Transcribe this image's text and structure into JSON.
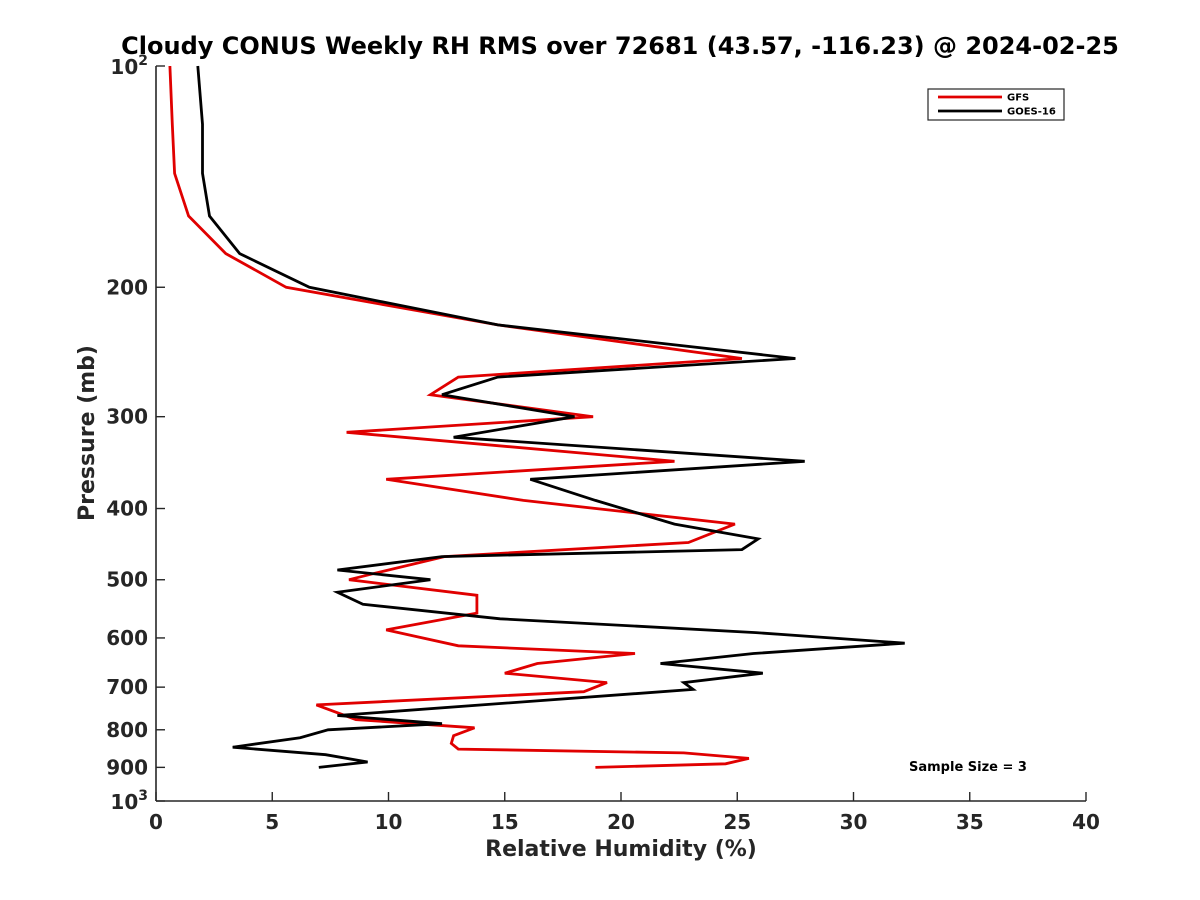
{
  "chart_data": {
    "type": "line",
    "title": "Cloudy CONUS Weekly RH RMS over 72681 (43.57, -116.23) @ 2024-02-25",
    "xlabel": "Relative Humidity (%)",
    "ylabel": "Pressure (mb)",
    "xlim": [
      0,
      40
    ],
    "ylim": [
      100,
      1000
    ],
    "y_scale": "log",
    "y_reversed": true,
    "xticks": [
      0,
      5,
      10,
      15,
      20,
      25,
      30,
      35,
      40
    ],
    "yticks": [
      100,
      200,
      300,
      400,
      500,
      600,
      700,
      800,
      900,
      1000
    ],
    "ytick_labels": [
      "",
      "200",
      "300",
      "400",
      "500",
      "600",
      "700",
      "800",
      "900",
      ""
    ],
    "ytick_exponent_labels": [
      {
        "p": 100,
        "base": "10",
        "exp": "2"
      },
      {
        "p": 1000,
        "base": "10",
        "exp": "3"
      }
    ],
    "grid": false,
    "legend_position": "top-right",
    "annotation": "Sample Size = 3",
    "series": [
      {
        "name": "GFS",
        "color": "#e00000",
        "points": [
          [
            0.6,
            100
          ],
          [
            0.7,
            120
          ],
          [
            0.8,
            140
          ],
          [
            1.4,
            160
          ],
          [
            3.0,
            180
          ],
          [
            5.6,
            200
          ],
          [
            14.7,
            225
          ],
          [
            25.2,
            250
          ],
          [
            13.0,
            265
          ],
          [
            11.8,
            280
          ],
          [
            18.8,
            300
          ],
          [
            8.2,
            315
          ],
          [
            22.3,
            345
          ],
          [
            9.9,
            365
          ],
          [
            15.8,
            390
          ],
          [
            24.9,
            420
          ],
          [
            22.9,
            445
          ],
          [
            12.4,
            465
          ],
          [
            9.4,
            490
          ],
          [
            8.3,
            500
          ],
          [
            13.8,
            525
          ],
          [
            13.8,
            555
          ],
          [
            9.9,
            585
          ],
          [
            13.0,
            615
          ],
          [
            20.6,
            630
          ],
          [
            16.4,
            650
          ],
          [
            15.0,
            670
          ],
          [
            19.4,
            690
          ],
          [
            18.4,
            710
          ],
          [
            6.9,
            740
          ],
          [
            8.6,
            775
          ],
          [
            13.7,
            795
          ],
          [
            12.8,
            815
          ],
          [
            12.7,
            835
          ],
          [
            13.0,
            850
          ],
          [
            22.7,
            860
          ],
          [
            25.5,
            875
          ],
          [
            24.5,
            890
          ],
          [
            18.9,
            900
          ]
        ]
      },
      {
        "name": "GOES-16",
        "color": "#000000",
        "points": [
          [
            1.8,
            100
          ],
          [
            2.0,
            120
          ],
          [
            2.0,
            140
          ],
          [
            2.3,
            160
          ],
          [
            3.6,
            180
          ],
          [
            6.6,
            200
          ],
          [
            14.7,
            225
          ],
          [
            27.5,
            250
          ],
          [
            14.7,
            265
          ],
          [
            12.3,
            280
          ],
          [
            18.0,
            300
          ],
          [
            12.8,
            320
          ],
          [
            27.9,
            345
          ],
          [
            16.1,
            365
          ],
          [
            18.9,
            390
          ],
          [
            22.3,
            420
          ],
          [
            25.9,
            440
          ],
          [
            25.2,
            455
          ],
          [
            12.3,
            465
          ],
          [
            7.8,
            485
          ],
          [
            11.8,
            500
          ],
          [
            7.8,
            520
          ],
          [
            8.9,
            540
          ],
          [
            14.8,
            565
          ],
          [
            25.8,
            590
          ],
          [
            32.2,
            610
          ],
          [
            25.7,
            630
          ],
          [
            21.7,
            650
          ],
          [
            26.1,
            670
          ],
          [
            22.7,
            690
          ],
          [
            23.1,
            705
          ],
          [
            7.8,
            765
          ],
          [
            12.3,
            785
          ],
          [
            7.4,
            800
          ],
          [
            6.2,
            820
          ],
          [
            3.3,
            845
          ],
          [
            7.3,
            865
          ],
          [
            9.1,
            885
          ],
          [
            7.0,
            900
          ]
        ]
      }
    ]
  }
}
